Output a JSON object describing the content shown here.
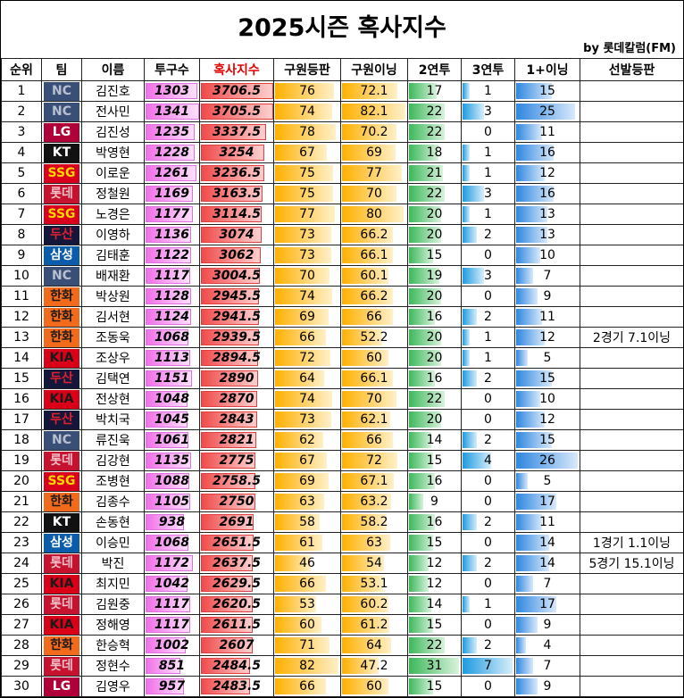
{
  "header": {
    "title": "2025시즌 혹사지수",
    "byline": "by 롯데칼럼(FM)"
  },
  "table": {
    "columns": [
      "순위",
      "팀",
      "이름",
      "투구수",
      "혹사지수",
      "구원등판",
      "구원이닝",
      "2연투",
      "3연투",
      "1+이닝",
      "선발등판"
    ],
    "team_colors": {
      "NC": [
        "#3a4f78",
        "#b8c0d0"
      ],
      "LG": [
        "#b0003a",
        "#ffffff"
      ],
      "KT": [
        "#111111",
        "#ffffff"
      ],
      "SSG": [
        "#d8001c",
        "#ffd800"
      ],
      "롯데": [
        "#c4122f",
        "#f5c0c8"
      ],
      "두산": [
        "#15173a",
        "#e0202e"
      ],
      "삼성": [
        "#0b5cab",
        "#ffffff"
      ],
      "한화": [
        "#f26b1d",
        "#1a1a1a"
      ],
      "KIA": [
        "#d90018",
        "#1a1a1a"
      ]
    },
    "rows": [
      [
        1,
        "NC",
        "김진호",
        1303,
        3706.5,
        76,
        72.1,
        17,
        1,
        15,
        null
      ],
      [
        2,
        "NC",
        "전사민",
        1341,
        3705.5,
        74,
        82.1,
        22,
        3,
        25,
        null
      ],
      [
        3,
        "LG",
        "김진성",
        1235,
        3337.5,
        78,
        70.2,
        22,
        0,
        11,
        null
      ],
      [
        4,
        "KT",
        "박영현",
        1228,
        3254,
        67,
        69,
        18,
        1,
        16,
        null
      ],
      [
        5,
        "SSG",
        "이로운",
        1261,
        3236.5,
        75,
        77,
        21,
        1,
        12,
        null
      ],
      [
        6,
        "롯데",
        "정철원",
        1169,
        3163.5,
        75,
        70,
        22,
        3,
        16,
        null
      ],
      [
        7,
        "SSG",
        "노경은",
        1177,
        3114.5,
        77,
        80,
        20,
        1,
        13,
        null
      ],
      [
        8,
        "두산",
        "이영하",
        1136,
        3074,
        73,
        66.2,
        20,
        2,
        13,
        null
      ],
      [
        9,
        "삼성",
        "김태훈",
        1122,
        3062,
        73,
        66.1,
        15,
        0,
        10,
        null
      ],
      [
        10,
        "NC",
        "배재환",
        1117,
        3004.5,
        70,
        60.1,
        19,
        3,
        7,
        null
      ],
      [
        11,
        "한화",
        "박상원",
        1128,
        2945.5,
        74,
        66.2,
        20,
        0,
        9,
        null
      ],
      [
        12,
        "한화",
        "김서현",
        1124,
        2941.5,
        69,
        66,
        16,
        2,
        11,
        null
      ],
      [
        13,
        "한화",
        "조동욱",
        1068,
        2939.5,
        66,
        52.2,
        20,
        1,
        12,
        "2경기 7.1이닝"
      ],
      [
        14,
        "KIA",
        "조상우",
        1113,
        2894.5,
        72,
        60,
        20,
        1,
        5,
        null
      ],
      [
        15,
        "두산",
        "김택연",
        1151,
        2890,
        64,
        66.1,
        16,
        2,
        15,
        null
      ],
      [
        16,
        "KIA",
        "전상현",
        1048,
        2870,
        74,
        70,
        22,
        0,
        10,
        null
      ],
      [
        17,
        "두산",
        "박치국",
        1045,
        2843,
        73,
        62.1,
        20,
        0,
        12,
        null
      ],
      [
        18,
        "NC",
        "류진욱",
        1061,
        2821,
        62,
        66,
        14,
        2,
        15,
        null
      ],
      [
        19,
        "롯데",
        "김강현",
        1135,
        2775,
        67,
        72,
        15,
        4,
        26,
        null
      ],
      [
        20,
        "SSG",
        "조병현",
        1088,
        2758.5,
        69,
        67.1,
        16,
        0,
        5,
        null
      ],
      [
        21,
        "한화",
        "김종수",
        1105,
        2750,
        63,
        63.2,
        9,
        0,
        17,
        null
      ],
      [
        22,
        "KT",
        "손동현",
        938,
        2691,
        58,
        58.2,
        16,
        2,
        11,
        null
      ],
      [
        23,
        "삼성",
        "이승민",
        1068,
        2651.5,
        61,
        63,
        15,
        0,
        14,
        "1경기 1.1이닝"
      ],
      [
        24,
        "롯데",
        "박진",
        1172,
        2637.5,
        46,
        54,
        12,
        2,
        14,
        "5경기 15.1이닝"
      ],
      [
        25,
        "KIA",
        "최지민",
        1042,
        2629.5,
        66,
        53.1,
        12,
        0,
        7,
        null
      ],
      [
        26,
        "롯데",
        "김원중",
        1117,
        2620.5,
        53,
        60.2,
        14,
        1,
        17,
        null
      ],
      [
        27,
        "KIA",
        "정해영",
        1117,
        2611.5,
        60,
        61.2,
        15,
        0,
        9,
        null
      ],
      [
        28,
        "한화",
        "한승혁",
        1002,
        2607,
        71,
        64,
        22,
        2,
        4,
        null
      ],
      [
        29,
        "롯데",
        "정현수",
        851,
        2484.5,
        82,
        47.2,
        31,
        7,
        7,
        null
      ],
      [
        30,
        "LG",
        "김영우",
        957,
        2483.5,
        66,
        60,
        15,
        0,
        9,
        null
      ]
    ]
  }
}
